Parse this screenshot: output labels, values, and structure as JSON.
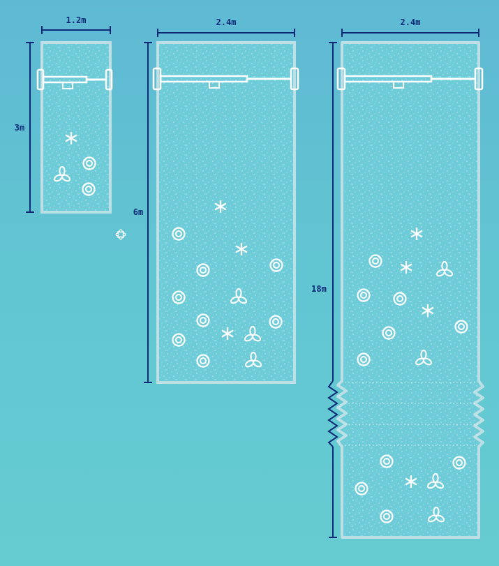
{
  "colors": {
    "background_top": "#5fb9d3",
    "background_bottom": "#66ccd1",
    "panel_fill": "#6ecbd8",
    "panel_border": "#bde0e6",
    "dimension_line": "#0c2a78",
    "motif": "#ffffff"
  },
  "panels": [
    {
      "id": "small",
      "width_label": "1.2m",
      "height_label": "3m",
      "icons": [
        "asterisk-flower-icon",
        "rose-icon",
        "trefoil-icon",
        "rose-icon"
      ]
    },
    {
      "id": "medium",
      "width_label": "2.4m",
      "height_label": "6m",
      "icons": [
        "asterisk-flower-icon",
        "rose-icon",
        "asterisk-flower-icon",
        "rose-icon",
        "rose-icon",
        "rose-icon",
        "trefoil-icon",
        "rose-icon",
        "asterisk-flower-icon",
        "trefoil-icon",
        "rose-icon",
        "rose-icon",
        "rose-icon",
        "trefoil-icon"
      ]
    },
    {
      "id": "large",
      "width_label": "2.4m",
      "height_label": "18m",
      "has_break_marks": true,
      "icons": [
        "asterisk-flower-icon",
        "rose-icon",
        "asterisk-flower-icon",
        "trefoil-icon",
        "rose-icon",
        "rose-icon",
        "asterisk-flower-icon",
        "rose-icon",
        "rose-icon",
        "rose-icon",
        "trefoil-icon",
        "rose-icon",
        "rose-icon",
        "rose-icon",
        "asterisk-flower-icon",
        "trefoil-icon",
        "rose-icon",
        "trefoil-icon"
      ]
    }
  ],
  "stray_motif": "small-flower-icon"
}
